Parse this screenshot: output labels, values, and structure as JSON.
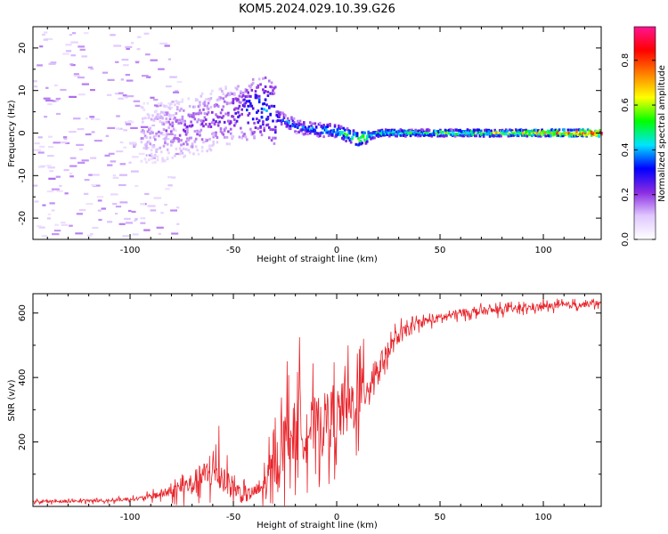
{
  "title": "KOM5.2024.029.10.39.G26",
  "chart_data": [
    {
      "type": "heatmap",
      "title": "KOM5.2024.029.10.39.G26",
      "xlabel": "Height of straight line (km)",
      "ylabel": "Frequency (Hz)",
      "xlim": [
        -147,
        128
      ],
      "ylim": [
        -25,
        25
      ],
      "xticks": [
        -100,
        -50,
        0,
        50,
        100
      ],
      "yticks": [
        -20,
        -10,
        0,
        10,
        20
      ],
      "colorbar": {
        "label": "Normalized spectral amplitude",
        "range": [
          0.0,
          0.95
        ],
        "ticks": [
          0.0,
          0.2,
          0.4,
          0.6,
          0.8
        ],
        "colormap": [
          "#ffffff",
          "#e0c8ff",
          "#8a2be2",
          "#0000ff",
          "#00e5ff",
          "#00ff00",
          "#ffff00",
          "#ff8000",
          "#ff0000",
          "#ff1493"
        ]
      },
      "ridge": [
        {
          "x": -90,
          "freq": 0.0,
          "amp": 0.15
        },
        {
          "x": -75,
          "freq": 1.0,
          "amp": 0.2
        },
        {
          "x": -60,
          "freq": 3.0,
          "amp": 0.22
        },
        {
          "x": -50,
          "freq": 4.5,
          "amp": 0.25
        },
        {
          "x": -40,
          "freq": 5.8,
          "amp": 0.35
        },
        {
          "x": -35,
          "freq": 6.0,
          "amp": 0.4
        },
        {
          "x": -28,
          "freq": 3.5,
          "amp": 0.35
        },
        {
          "x": -20,
          "freq": 1.5,
          "amp": 0.35
        },
        {
          "x": -10,
          "freq": 0.8,
          "amp": 0.4
        },
        {
          "x": 0,
          "freq": 0.5,
          "amp": 0.45
        },
        {
          "x": 10,
          "freq": -1.5,
          "amp": 0.6
        },
        {
          "x": 20,
          "freq": 0.0,
          "amp": 0.5
        },
        {
          "x": 50,
          "freq": 0.0,
          "amp": 0.55
        },
        {
          "x": 80,
          "freq": 0.0,
          "amp": 0.6
        },
        {
          "x": 100,
          "freq": 0.0,
          "amp": 0.75
        },
        {
          "x": 128,
          "freq": 0.0,
          "amp": 0.9
        }
      ]
    },
    {
      "type": "line",
      "xlabel": "Height of straight line (km)",
      "ylabel": "SNR (v/v)",
      "xlim": [
        -147,
        128
      ],
      "ylim": [
        0,
        660
      ],
      "xticks": [
        -100,
        -50,
        0,
        50,
        100
      ],
      "yticks": [
        200,
        400,
        600
      ],
      "color": "#e8242a",
      "trend": [
        {
          "x": -147,
          "snr": 15
        },
        {
          "x": -110,
          "snr": 18
        },
        {
          "x": -95,
          "snr": 25
        },
        {
          "x": -80,
          "snr": 45
        },
        {
          "x": -70,
          "snr": 70
        },
        {
          "x": -60,
          "snr": 110
        },
        {
          "x": -55,
          "snr": 90
        },
        {
          "x": -45,
          "snr": 30
        },
        {
          "x": -35,
          "snr": 60
        },
        {
          "x": -30,
          "snr": 130
        },
        {
          "x": -25,
          "snr": 200
        },
        {
          "x": -20,
          "snr": 230
        },
        {
          "x": -10,
          "snr": 250
        },
        {
          "x": 0,
          "snr": 280
        },
        {
          "x": 10,
          "snr": 330
        },
        {
          "x": 20,
          "snr": 430
        },
        {
          "x": 30,
          "snr": 530
        },
        {
          "x": 40,
          "snr": 570
        },
        {
          "x": 60,
          "snr": 600
        },
        {
          "x": 80,
          "snr": 610
        },
        {
          "x": 100,
          "snr": 620
        },
        {
          "x": 128,
          "snr": 630
        }
      ],
      "noise": [
        {
          "x": -147,
          "amp": 10
        },
        {
          "x": -95,
          "amp": 12
        },
        {
          "x": -80,
          "amp": 40
        },
        {
          "x": -60,
          "amp": 120
        },
        {
          "x": -50,
          "amp": 70
        },
        {
          "x": -40,
          "amp": 40
        },
        {
          "x": -25,
          "amp": 220
        },
        {
          "x": -10,
          "amp": 200
        },
        {
          "x": 10,
          "amp": 200
        },
        {
          "x": 20,
          "amp": 80
        },
        {
          "x": 40,
          "amp": 30
        },
        {
          "x": 128,
          "amp": 20
        }
      ],
      "spikes": [
        {
          "x": -57,
          "snr": 250
        },
        {
          "x": -32,
          "snr": 10
        },
        {
          "x": -18,
          "snr": 525
        },
        {
          "x": -24,
          "snr": 450
        },
        {
          "x": 13,
          "snr": 520
        },
        {
          "x": 100,
          "snr": 655
        }
      ]
    }
  ]
}
